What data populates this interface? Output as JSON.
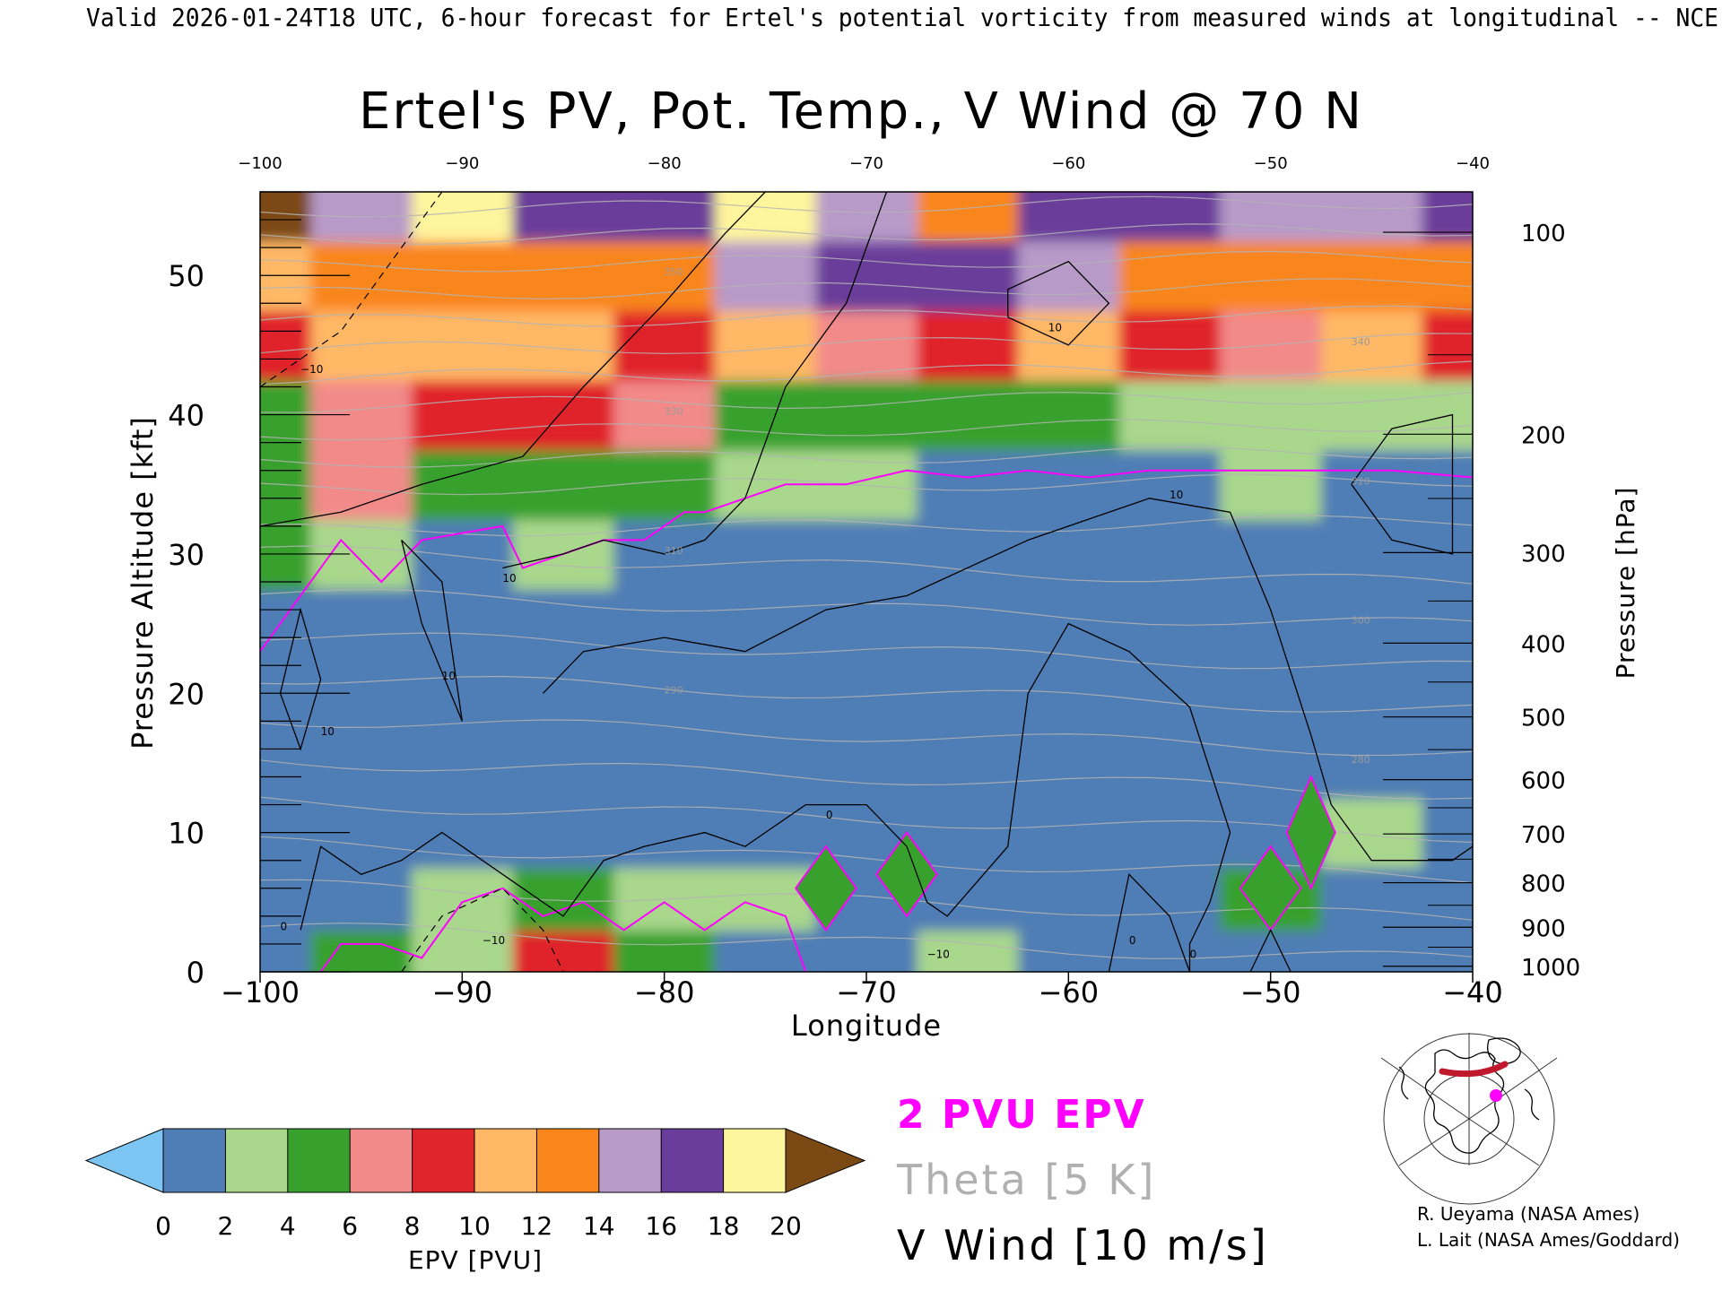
{
  "header": {
    "valid_line": "Valid 2026-01-24T18 UTC, 6-hour forecast for Ertel's potential vorticity from measured winds at longitudinal -- NCE"
  },
  "chart_data": {
    "type": "heatmap",
    "title": "Ertel's PV, Pot. Temp., V Wind @ 70 N",
    "xlabel": "Longitude",
    "ylabel_left": "Pressure Altitude [kft]",
    "ylabel_right": "Pressure [hPa]",
    "xlim": [
      -100,
      -40
    ],
    "ylim_kft": [
      0,
      56
    ],
    "x_ticks": [
      -100,
      -90,
      -80,
      -70,
      -60,
      -50,
      -40
    ],
    "x_tick_labels": [
      "−100",
      "−90",
      "−80",
      "−70",
      "−60",
      "−50",
      "−40"
    ],
    "top_x_tick_labels": [
      "−100",
      "−90",
      "−80",
      "−70",
      "−60",
      "−50",
      "−40"
    ],
    "y_ticks_kft": [
      0,
      10,
      20,
      30,
      40,
      50
    ],
    "pressure_levels": [
      {
        "hPa": 100,
        "kft": 53.1
      },
      {
        "hPa": 200,
        "kft": 38.6
      },
      {
        "hPa": 300,
        "kft": 30.1
      },
      {
        "hPa": 400,
        "kft": 23.6
      },
      {
        "hPa": 500,
        "kft": 18.3
      },
      {
        "hPa": 600,
        "kft": 13.8
      },
      {
        "hPa": 700,
        "kft": 9.9
      },
      {
        "hPa": 800,
        "kft": 6.4
      },
      {
        "hPa": 900,
        "kft": 3.2
      },
      {
        "hPa": 1000,
        "kft": 0.4
      }
    ],
    "epv_field_pvu": {
      "longitudes": [
        -100,
        -95,
        -90,
        -85,
        -80,
        -75,
        -70,
        -65,
        -60,
        -55,
        -50,
        -45,
        -40
      ],
      "levels_kft": [
        1,
        5,
        10,
        15,
        20,
        25,
        30,
        35,
        40,
        45,
        50,
        55
      ],
      "values": [
        [
          1.0,
          5.0,
          3.0,
          9.0,
          4.0,
          1.0,
          0.2,
          2.0,
          1.0,
          1.0,
          1.0,
          1.0,
          1.0
        ],
        [
          1.0,
          1.5,
          2.0,
          4.0,
          3.0,
          2.0,
          1.0,
          1.0,
          0.6,
          1.0,
          5.0,
          1.0,
          1.0
        ],
        [
          1.2,
          1.0,
          1.2,
          1.5,
          1.2,
          1.0,
          1.0,
          1.0,
          1.0,
          1.0,
          1.0,
          3.0,
          1.5
        ],
        [
          1.0,
          1.2,
          1.0,
          1.0,
          1.2,
          1.0,
          1.0,
          1.0,
          1.0,
          1.0,
          1.0,
          1.0,
          1.2
        ],
        [
          0.8,
          1.0,
          1.0,
          1.0,
          0.9,
          0.9,
          0.9,
          0.8,
          0.8,
          1.0,
          1.0,
          1.0,
          1.0
        ],
        [
          1.5,
          1.2,
          1.0,
          1.0,
          1.0,
          1.0,
          1.0,
          1.0,
          1.0,
          1.0,
          1.2,
          1.0,
          1.0
        ],
        [
          4.0,
          2.5,
          1.5,
          2.0,
          1.5,
          1.5,
          1.5,
          1.5,
          1.5,
          1.5,
          1.5,
          1.5,
          1.5
        ],
        [
          5.0,
          6.0,
          5.0,
          4.5,
          4.5,
          2.5,
          2.0,
          1.8,
          1.5,
          1.5,
          2.5,
          1.5,
          1.5
        ],
        [
          5.0,
          7.0,
          9.0,
          8.0,
          6.0,
          5.0,
          4.5,
          4.5,
          4.0,
          3.5,
          3.5,
          3.5,
          3.0
        ],
        [
          9.0,
          10.0,
          10.0,
          11.0,
          9.0,
          10.0,
          6.0,
          9.0,
          10.0,
          9.0,
          7.0,
          10.0,
          8.0
        ],
        [
          11.0,
          12.0,
          12.0,
          13.0,
          12.0,
          14.0,
          16.0,
          17.0,
          14.0,
          12.0,
          13.0,
          12.0,
          12.0
        ],
        [
          20.0,
          14.0,
          18.0,
          16.0,
          16.0,
          19.0,
          14.0,
          13.0,
          16.0,
          17.0,
          15.0,
          15.0,
          16.0
        ]
      ]
    },
    "contour_labels": {
      "theta": [
        "350",
        "340",
        "330",
        "320",
        "310",
        "300",
        "290",
        "280"
      ],
      "v_wind": [
        "10",
        "0",
        "−10"
      ]
    },
    "colorbar": {
      "label": "EPV [PVU]",
      "tick_labels": [
        "0",
        "2",
        "4",
        "6",
        "8",
        "10",
        "12",
        "14",
        "16",
        "18",
        "20"
      ],
      "min": 0,
      "max": 20,
      "step": 2,
      "colors": [
        "#4f7db5",
        "#a9d78c",
        "#38a12e",
        "#f28a8a",
        "#e0242c",
        "#ffb866",
        "#f9861a",
        "#b89ac8",
        "#6a3d9a",
        "#fff59c"
      ],
      "under_color": "#7cc4f2",
      "over_color": "#7b4a14"
    },
    "legend": [
      {
        "label": "2 PVU EPV",
        "color": "#ff00ff"
      },
      {
        "label": "Theta [5 K]",
        "color": "#b0b0b0"
      },
      {
        "label": "V Wind [10 m/s]",
        "color": "#000000"
      }
    ]
  },
  "credits": [
    "R. Ueyama (NASA Ames)",
    "L. Lait (NASA Ames/Goddard)"
  ]
}
